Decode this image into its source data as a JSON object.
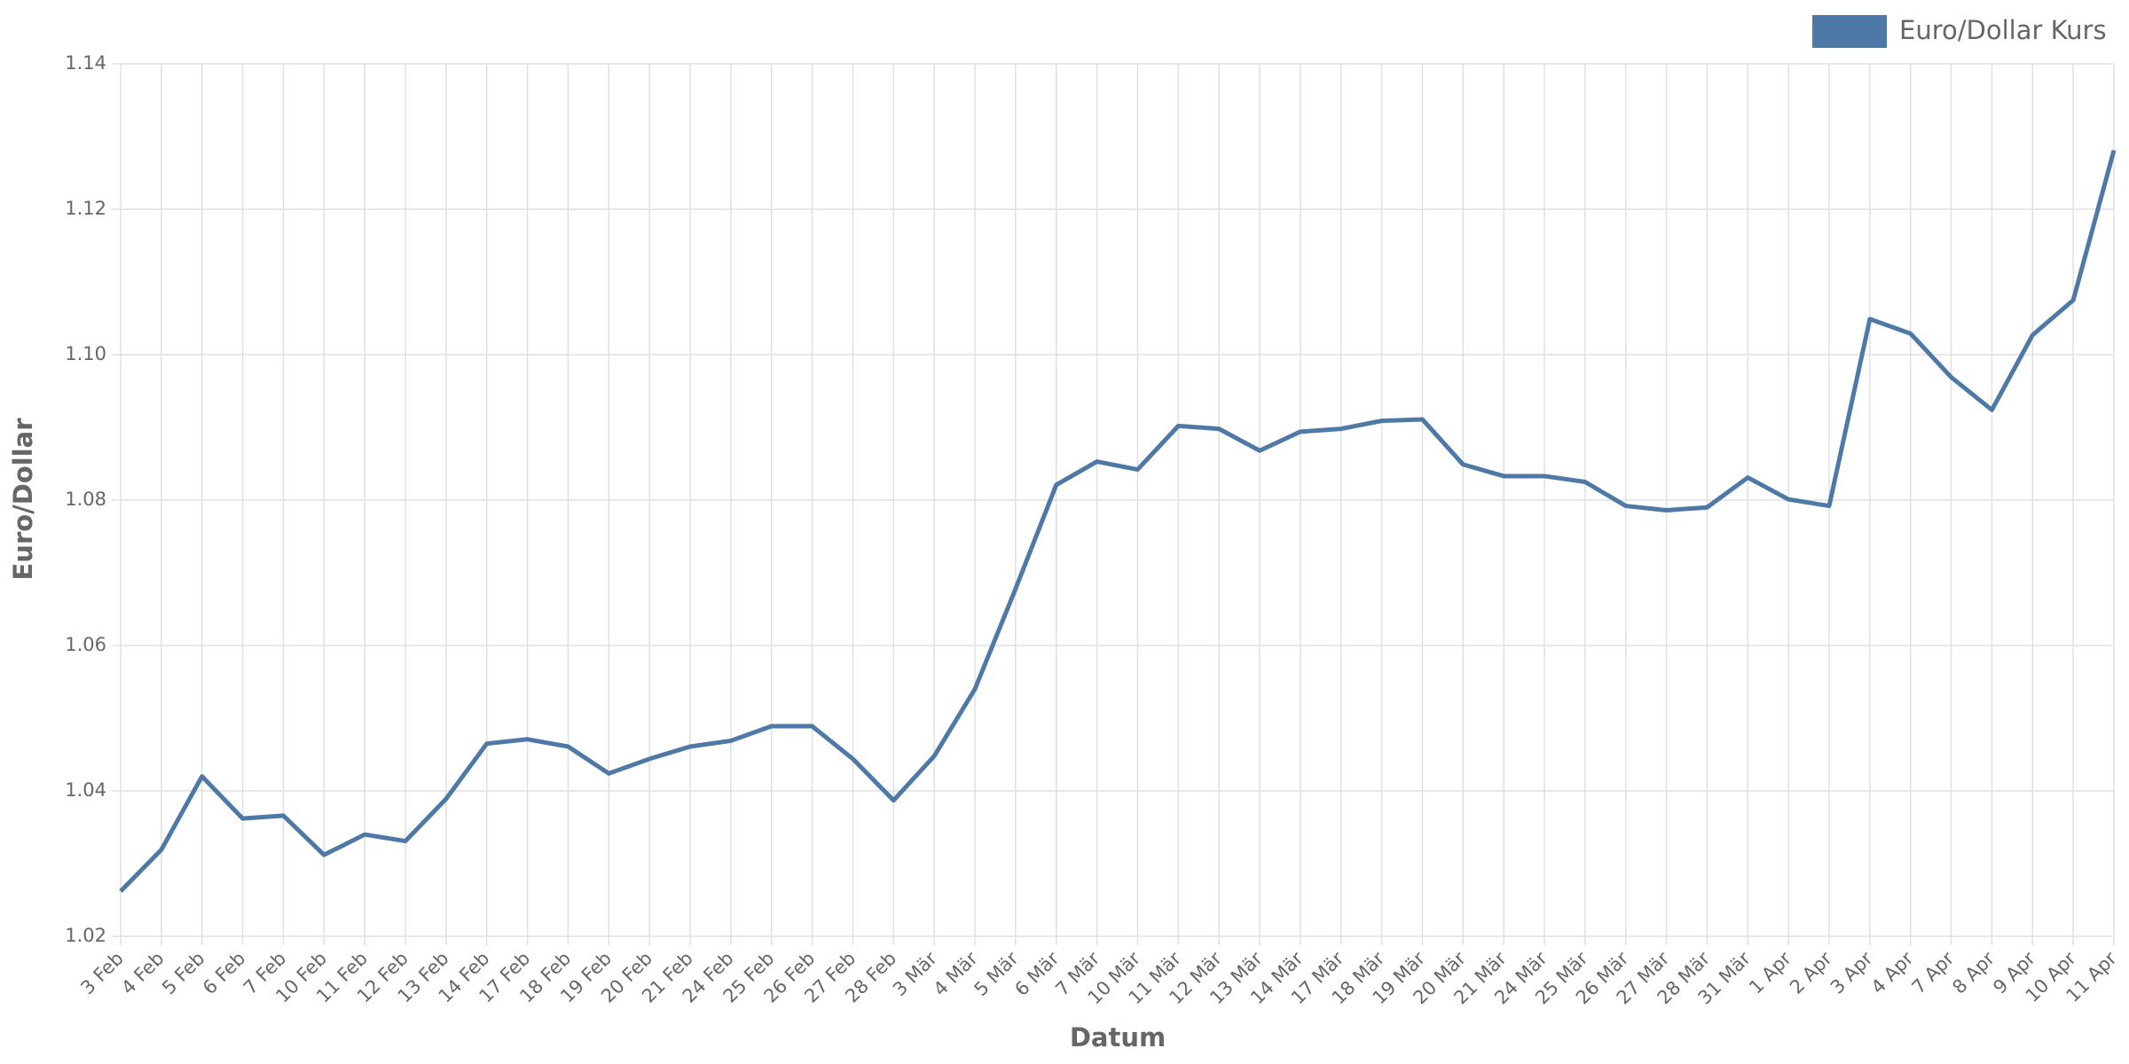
{
  "chart_data": {
    "type": "line",
    "x_label": "Datum",
    "y_label": "Euro/Dollar",
    "categories": [
      "3 Feb",
      "4 Feb",
      "5 Feb",
      "6 Feb",
      "7 Feb",
      "10 Feb",
      "11 Feb",
      "12 Feb",
      "13 Feb",
      "14 Feb",
      "17 Feb",
      "18 Feb",
      "19 Feb",
      "20 Feb",
      "21 Feb",
      "24 Feb",
      "25 Feb",
      "26 Feb",
      "27 Feb",
      "28 Feb",
      "3 Mär",
      "4 Mär",
      "5 Mär",
      "6 Mär",
      "7 Mär",
      "10 Mär",
      "11 Mär",
      "12 Mär",
      "13 Mär",
      "14 Mär",
      "17 Mär",
      "18 Mär",
      "19 Mär",
      "20 Mär",
      "21 Mär",
      "24 Mär",
      "25 Mär",
      "26 Mär",
      "27 Mär",
      "28 Mär",
      "31 Mär",
      "1 Apr",
      "2 Apr",
      "3 Apr",
      "4 Apr",
      "7 Apr",
      "8 Apr",
      "9 Apr",
      "10 Apr",
      "11 Apr"
    ],
    "series": [
      {
        "name": "Euro/Dollar Kurs",
        "color": "#4e79a7",
        "values": [
          1.0262,
          1.0319,
          1.042,
          1.0362,
          1.0366,
          1.0312,
          1.034,
          1.0331,
          1.0389,
          1.0465,
          1.0471,
          1.0461,
          1.0424,
          1.0444,
          1.0461,
          1.0469,
          1.0489,
          1.0489,
          1.0444,
          1.0387,
          1.0448,
          1.054,
          1.0678,
          1.0821,
          1.0853,
          1.0842,
          1.0902,
          1.0898,
          1.0868,
          1.0894,
          1.0898,
          1.0909,
          1.0911,
          1.0849,
          1.0833,
          1.0833,
          1.0825,
          1.0792,
          1.0786,
          1.079,
          1.0831,
          1.0801,
          1.0792,
          1.1049,
          1.1029,
          1.0969,
          1.0924,
          1.1027,
          1.1075,
          1.1281
        ]
      }
    ],
    "ylim": [
      1.02,
      1.14
    ],
    "yticks": [
      1.02,
      1.04,
      1.06,
      1.08,
      {
        "value": 1.1,
        "label": "1.10"
      },
      1.12,
      1.14
    ],
    "grid": true,
    "legend": "top-right"
  }
}
